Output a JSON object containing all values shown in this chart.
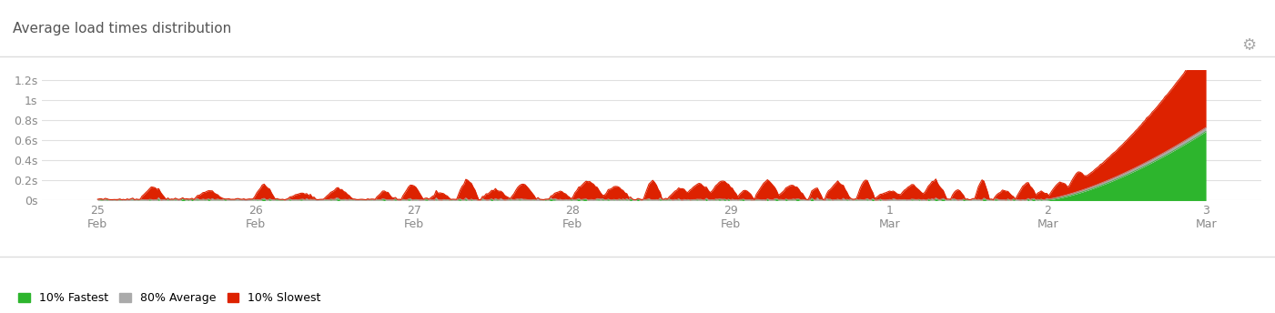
{
  "title": "Average load times distribution",
  "title_color": "#555555",
  "background_color": "#ffffff",
  "plot_bg_color": "#ffffff",
  "grid_color": "#e0e0e0",
  "ylim": [
    0,
    1.3
  ],
  "yticks": [
    0,
    0.2,
    0.4,
    0.6,
    0.8,
    1.0,
    1.2
  ],
  "ytick_labels": [
    "0s",
    "0.2s",
    "0.4s",
    "0.6s",
    "0.8s",
    "1s",
    "1.2s"
  ],
  "xtick_labels": [
    "25\nFeb",
    "26\nFeb",
    "27\nFeb",
    "28\nFeb",
    "29\nFeb",
    "1\nMar",
    "2\nMar",
    "3\nMar"
  ],
  "color_fastest": "#2db52d",
  "color_average": "#aaaaaa",
  "color_slowest": "#dd2200",
  "legend_labels": [
    "10% Fastest",
    "80% Average",
    "10% Slowest"
  ],
  "legend_colors": [
    "#2db52d",
    "#aaaaaa",
    "#dd2200"
  ]
}
